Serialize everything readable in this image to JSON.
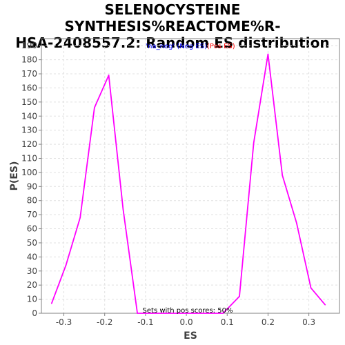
{
  "chart_data": {
    "type": "line",
    "title": [
      "SELENOCYSTEINE SYNTHESIS%REACTOME%R-",
      "HSA-2408557.2: Random ES distribution"
    ],
    "xlabel": "ES",
    "ylabel": "P(ES)",
    "xlim": [
      -0.355,
      0.375
    ],
    "ylim": [
      0,
      195
    ],
    "xticks": [
      "-0.3",
      "-0.2",
      "-0.1",
      "0.0",
      "0.1",
      "0.2",
      "0.3"
    ],
    "xtick_values": [
      -0.3,
      -0.2,
      -0.1,
      0.0,
      0.1,
      0.2,
      0.3
    ],
    "yticks": [
      0,
      10,
      20,
      30,
      40,
      50,
      60,
      70,
      80,
      90,
      100,
      110,
      120,
      130,
      140,
      150,
      160,
      170,
      180,
      190
    ],
    "grid": true,
    "legend": {
      "prefix": "'na_neg' ",
      "neg": "(Neg ES)",
      "pos": "(Pos ES)",
      "neg_color": "#0000ff",
      "pos_color": "#ff0000",
      "placement": "top-center"
    },
    "annotation": "Sets with pos scores: 50%",
    "series": [
      {
        "color": "#ff00ff",
        "x": [
          -0.33,
          -0.295,
          -0.26,
          -0.225,
          -0.19,
          -0.155,
          -0.12,
          -0.085,
          -0.05,
          -0.015,
          0.02,
          0.055,
          0.09,
          0.13,
          0.165,
          0.2,
          0.235,
          0.27,
          0.305,
          0.34
        ],
        "y": [
          7,
          34,
          68,
          146,
          169,
          74,
          0,
          0,
          0,
          0,
          0,
          0,
          0,
          12,
          121,
          184,
          98,
          64,
          18,
          6
        ]
      }
    ]
  }
}
